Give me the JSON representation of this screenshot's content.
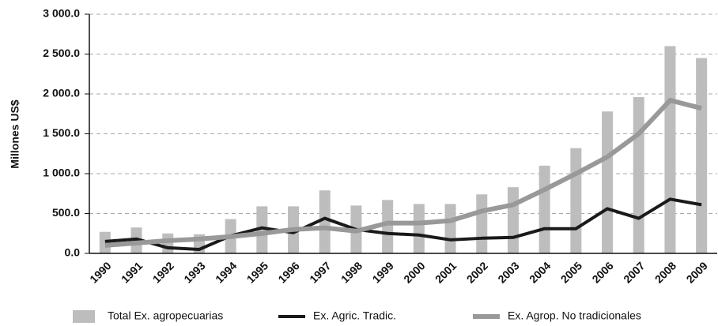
{
  "chart_data": {
    "type": "bar",
    "ylabel": "Millones US$",
    "categories": [
      "1990",
      "1991",
      "1992",
      "1993",
      "1994",
      "1995",
      "1996",
      "1997",
      "1998",
      "1999",
      "2000",
      "2001",
      "2002",
      "2003",
      "2004",
      "2005",
      "2006",
      "2007",
      "2008",
      "2009"
    ],
    "series": [
      {
        "name": "Total Ex. agropecuarias",
        "type": "bar",
        "color": "#bdbdbd",
        "values": [
          270,
          325,
          250,
          240,
          430,
          590,
          590,
          790,
          600,
          670,
          620,
          620,
          740,
          830,
          1100,
          1320,
          1780,
          1960,
          2600,
          2450
        ]
      },
      {
        "name": "Ex. Agric. Tradic.",
        "type": "line",
        "color": "#1a1a1a",
        "values": [
          150,
          180,
          70,
          50,
          220,
          320,
          260,
          440,
          300,
          250,
          230,
          170,
          190,
          200,
          310,
          310,
          560,
          440,
          680,
          610
        ]
      },
      {
        "name": "Ex. Agrop. No tradicionales",
        "type": "line",
        "color": "#999999",
        "values": [
          100,
          130,
          160,
          180,
          210,
          250,
          300,
          320,
          280,
          380,
          380,
          410,
          530,
          610,
          800,
          1000,
          1210,
          1500,
          1920,
          1820
        ]
      }
    ],
    "ylim": [
      0,
      3000
    ],
    "yticks": [
      {
        "value": 0,
        "label": "0.0"
      },
      {
        "value": 500,
        "label": "500.0"
      },
      {
        "value": 1000,
        "label": "1 000.0"
      },
      {
        "value": 1500,
        "label": "1 500.0"
      },
      {
        "value": 2000,
        "label": "2 000.0"
      },
      {
        "value": 2500,
        "label": "2 500.0"
      },
      {
        "value": 3000,
        "label": "3 000.0"
      }
    ],
    "grid": true,
    "legend": "bottom"
  }
}
